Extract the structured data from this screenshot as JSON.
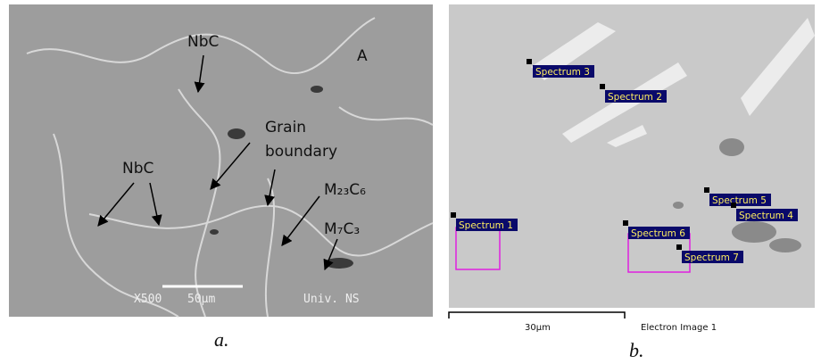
{
  "panel_a": {
    "labels": {
      "nbc_top": "NbC",
      "region": "A",
      "grain": [
        "Grain",
        "boundary"
      ],
      "nbc_left": "NbC",
      "m23c6": "M₂₃C₆",
      "m7c3": "M₇C₃"
    },
    "footer": {
      "magnification": "X500",
      "scale": "50µm",
      "source": "Univ. NS"
    },
    "caption": "a."
  },
  "panel_b": {
    "spectra": [
      "Spectrum 3",
      "Spectrum 2",
      "Spectrum 1",
      "Spectrum 6",
      "Spectrum 5",
      "Spectrum 4",
      "Spectrum 7"
    ],
    "scale": "30µm",
    "image_name": "Electron Image 1",
    "caption": "b."
  }
}
